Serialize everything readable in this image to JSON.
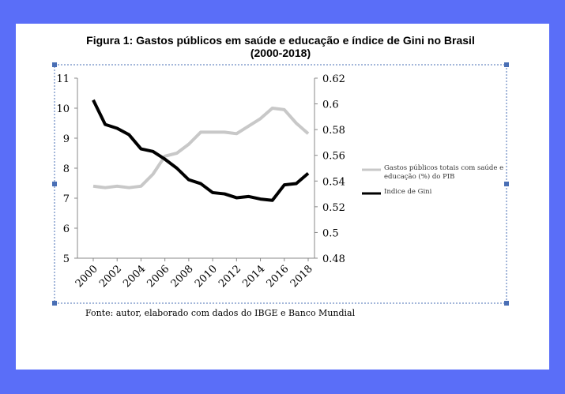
{
  "chart_data": {
    "type": "line",
    "title": "Figura 1: Gastos públicos em saúde e educação e índice de Gini no Brasil (2000-2018)",
    "x": [
      2000,
      2001,
      2002,
      2003,
      2004,
      2005,
      2006,
      2007,
      2008,
      2009,
      2010,
      2011,
      2012,
      2013,
      2014,
      2015,
      2016,
      2017,
      2018
    ],
    "xlim": [
      2000,
      2018
    ],
    "xticks": [
      2000,
      2002,
      2004,
      2006,
      2008,
      2010,
      2012,
      2014,
      2016,
      2018
    ],
    "ylim": [
      5,
      11
    ],
    "yticks": [
      5,
      6,
      7,
      8,
      9,
      10,
      11
    ],
    "y2lim": [
      0.48,
      0.62
    ],
    "y2ticks": [
      0.48,
      0.5,
      0.52,
      0.54,
      0.56,
      0.58,
      0.6,
      0.62
    ],
    "series": [
      {
        "name": "Gastos públicos totais com saúde e educação (%) do PIB",
        "color": "#c8c8c8",
        "values": [
          7.4,
          7.35,
          7.4,
          7.35,
          7.4,
          7.8,
          8.4,
          8.5,
          8.8,
          9.2,
          9.2,
          9.2,
          9.15,
          9.4,
          9.65,
          10.0,
          9.95,
          9.5,
          9.15
        ]
      },
      {
        "name": "Índice de Gini",
        "color": "#000000",
        "axis": "y2",
        "values": [
          0.603,
          0.584,
          0.581,
          0.576,
          0.565,
          0.563,
          0.557,
          0.55,
          0.541,
          0.538,
          0.531,
          0.53,
          0.527,
          0.528,
          0.526,
          0.525,
          0.537,
          0.538,
          0.546
        ]
      }
    ],
    "source": "Fonte: autor, elaborado com dados do IBGE e Banco Mundial"
  }
}
